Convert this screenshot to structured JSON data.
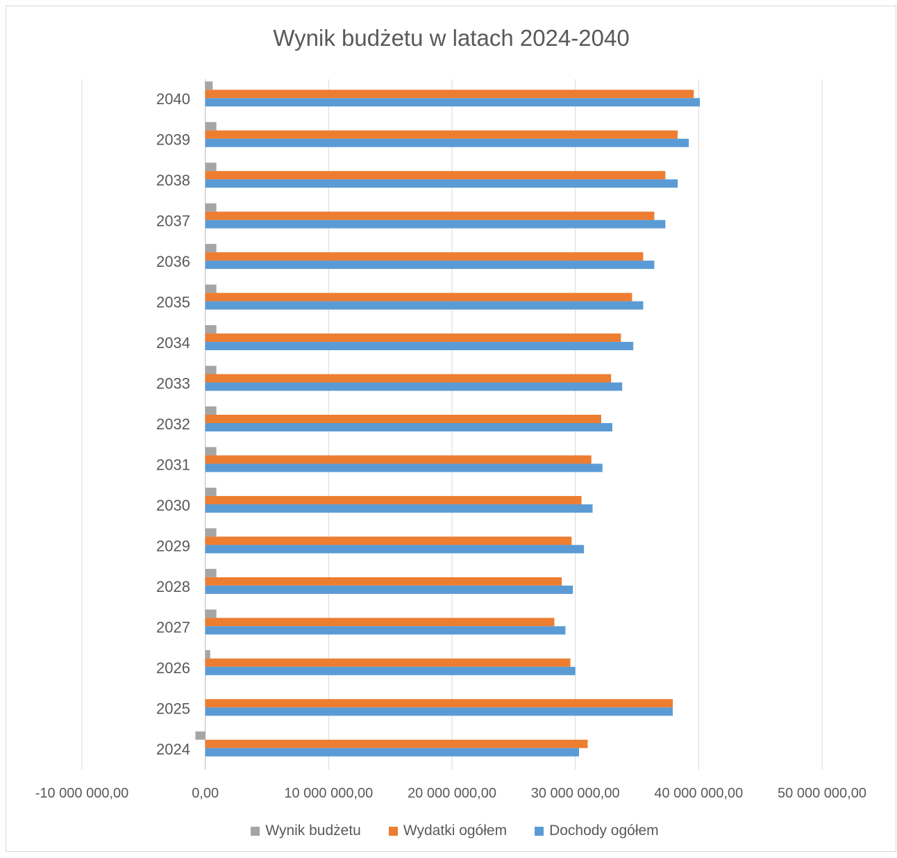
{
  "chart_data": {
    "type": "bar",
    "orientation": "horizontal",
    "title": "Wynik budżetu w latach 2024-2040",
    "categories": [
      "2040",
      "2039",
      "2038",
      "2037",
      "2036",
      "2035",
      "2034",
      "2033",
      "2032",
      "2031",
      "2030",
      "2029",
      "2028",
      "2027",
      "2026",
      "2025",
      "2024"
    ],
    "series": [
      {
        "name": "Wynik budżetu",
        "color": "#a5a5a5",
        "values": [
          600000,
          900000,
          900000,
          900000,
          900000,
          900000,
          900000,
          900000,
          900000,
          900000,
          900000,
          900000,
          900000,
          900000,
          400000,
          0,
          -800000
        ]
      },
      {
        "name": "Wydatki ogółem",
        "color": "#ed7d31",
        "values": [
          39600000,
          38300000,
          37300000,
          36400000,
          35500000,
          34600000,
          33700000,
          32900000,
          32100000,
          31300000,
          30500000,
          29700000,
          28900000,
          28300000,
          29600000,
          37900000,
          31000000
        ]
      },
      {
        "name": "Dochody ogółem",
        "color": "#5b9bd5",
        "values": [
          40100000,
          39200000,
          38300000,
          37300000,
          36400000,
          35500000,
          34700000,
          33800000,
          33000000,
          32200000,
          31400000,
          30700000,
          29800000,
          29200000,
          30000000,
          37900000,
          30300000
        ]
      }
    ],
    "xlim": [
      -10000000,
      50000000
    ],
    "xticks": [
      -10000000,
      0,
      10000000,
      20000000,
      30000000,
      40000000,
      50000000
    ],
    "xtick_labels": [
      "-10 000 000,00",
      "0,00",
      "10 000 000,00",
      "20 000 000,00",
      "30 000 000,00",
      "40 000 000,00",
      "50 000 000,00"
    ],
    "grid": "vertical",
    "legend_position": "bottom",
    "legend_order": [
      0,
      1,
      2
    ]
  }
}
